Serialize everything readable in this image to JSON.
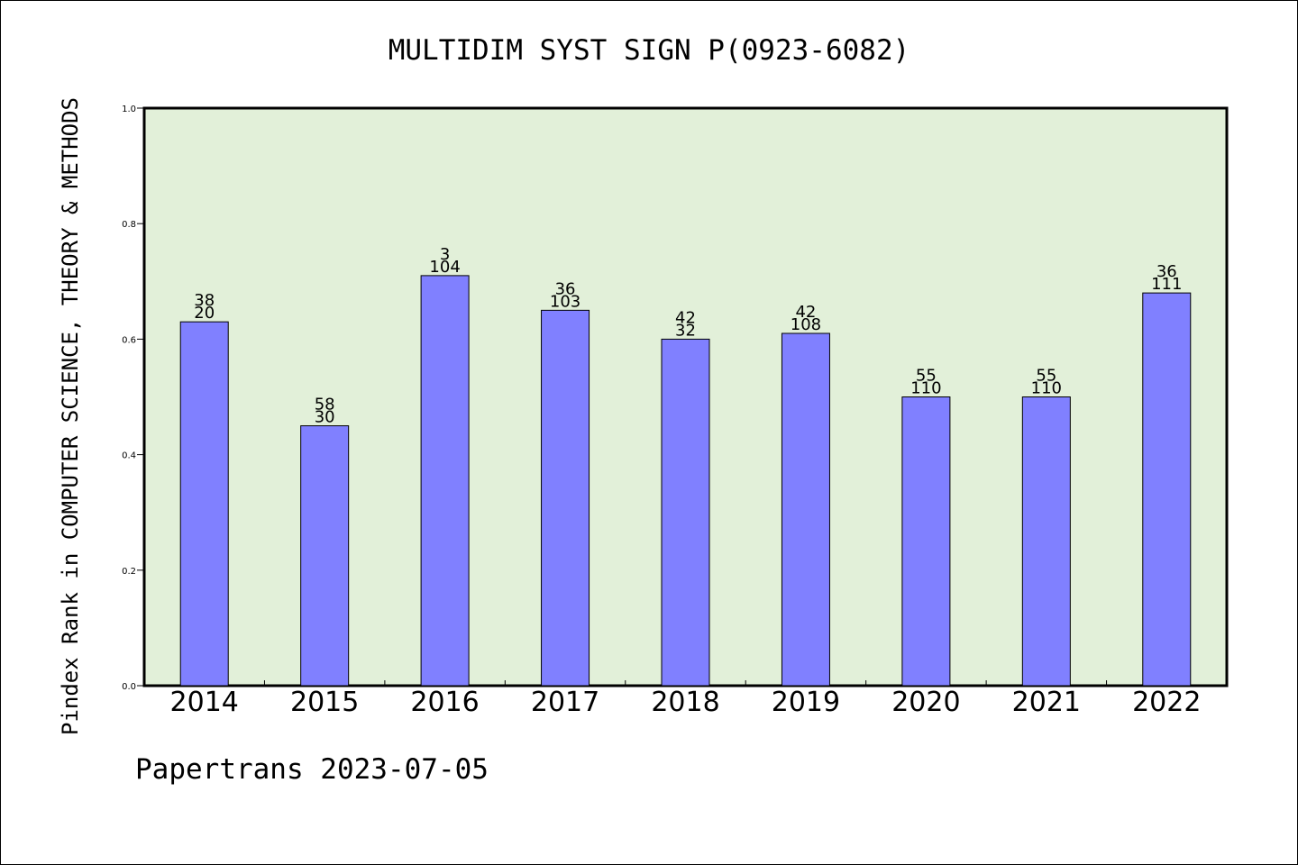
{
  "chart_data": {
    "type": "bar",
    "title": "MULTIDIM SYST SIGN P(0923-6082)",
    "ylabel": "Pindex Rank in COMPUTER SCIENCE, THEORY & METHODS",
    "xlabel": "",
    "footer": "Papertrans 2023-07-05",
    "ylim": [
      0,
      1.0
    ],
    "yticks": [
      "0.0",
      "0.2",
      "0.4",
      "0.6",
      "0.8",
      "1.0"
    ],
    "categories": [
      "2014",
      "2015",
      "2016",
      "2017",
      "2018",
      "2019",
      "2020",
      "2021",
      "2022"
    ],
    "values": [
      0.63,
      0.45,
      0.71,
      0.65,
      0.6,
      0.61,
      0.5,
      0.5,
      0.68
    ],
    "labels_top": [
      "38",
      "58",
      "3",
      "36",
      "42",
      "42",
      "55",
      "55",
      "36"
    ],
    "labels_bottom": [
      "20",
      "30",
      "104",
      "103",
      "32",
      "108",
      "110",
      "110",
      "111"
    ],
    "colors": {
      "plot_bg": "#e2f0d9",
      "bar": "#8080ff",
      "bar_edge": "#000000"
    },
    "grid": false
  }
}
